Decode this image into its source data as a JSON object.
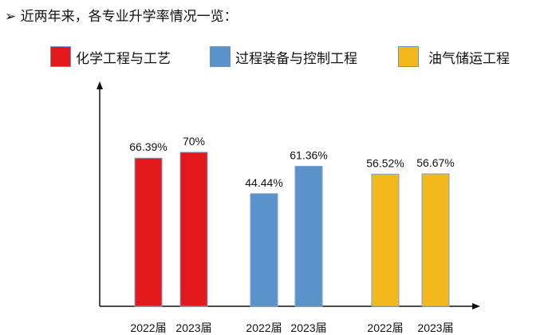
{
  "title": "➢ 近两年来，各专业升学率情况一览：",
  "chart_data": {
    "type": "bar",
    "title": "近两年来，各专业升学率情况一览",
    "legend_position": "top",
    "series": [
      {
        "name": "化学工程与工艺",
        "color": "#e3191b",
        "categories": [
          "2022届",
          "2023届"
        ],
        "values": [
          66.39,
          70
        ],
        "labels": [
          "66.39%",
          "70%"
        ]
      },
      {
        "name": "过程装备与控制工程",
        "color": "#5a93c9",
        "categories": [
          "2022届",
          "2023届"
        ],
        "values": [
          44.44,
          61.36
        ],
        "labels": [
          "44.44%",
          "61.36%"
        ]
      },
      {
        "name": "油气储运工程",
        "color": "#f3b81b",
        "categories": [
          "2022届",
          "2023届"
        ],
        "values": [
          56.52,
          56.67
        ],
        "labels": [
          "56.52%",
          "56.67%"
        ]
      }
    ],
    "xlabel": "",
    "ylabel": "",
    "grid": false
  }
}
